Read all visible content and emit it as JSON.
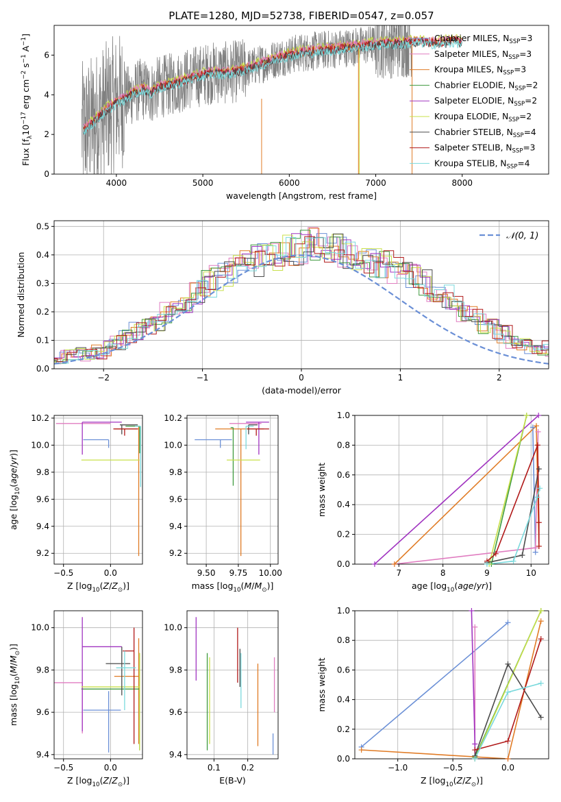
{
  "title": "PLATE=1280, MJD=52738, FIBERID=0547, z=0.057",
  "colors": {
    "chabrier_miles": "#6a8fd6",
    "salpeter_miles": "#e07cc0",
    "kroupa_miles": "#e07b25",
    "chabrier_elodie": "#3f9a3f",
    "salpeter_elodie": "#a033c0",
    "kroupa_elodie": "#c8e04a",
    "chabrier_stelib": "#4a4a4a",
    "salpeter_stelib": "#b01818",
    "kroupa_stelib": "#7ad9dc",
    "data": "#808080",
    "normal": "#6a8fd6"
  },
  "chart_data": [
    {
      "id": "spectrum",
      "type": "line",
      "xlabel": "wavelength [Angstrom, rest frame]",
      "ylabel": "Flux [f_λ10^-17 erg cm^-2 s^-1 A^-1]",
      "xlim": [
        3280,
        9000
      ],
      "ylim": [
        0,
        7.5
      ],
      "xticks": [
        "4000",
        "5000",
        "6000",
        "7000",
        "8000"
      ],
      "yticks": [
        "0",
        "2",
        "4",
        "6"
      ],
      "data_range": [
        3600,
        7420
      ],
      "legend_position": "right",
      "series": [
        {
          "name": "Chabrier MILES, N_SSP=3",
          "key": "chabrier_miles"
        },
        {
          "name": "Salpeter MILES, N_SSP=3",
          "key": "salpeter_miles"
        },
        {
          "name": "Kroupa MILES, N_SSP=3",
          "key": "kroupa_miles"
        },
        {
          "name": "Chabrier ELODIE, N_SSP=2",
          "key": "chabrier_elodie"
        },
        {
          "name": "Salpeter ELODIE, N_SSP=2",
          "key": "salpeter_elodie"
        },
        {
          "name": "Kroupa ELODIE, N_SSP=2",
          "key": "kroupa_elodie"
        },
        {
          "name": "Chabrier STELIB, N_SSP=4",
          "key": "chabrier_stelib"
        },
        {
          "name": "Salpeter STELIB, N_SSP=3",
          "key": "salpeter_stelib"
        },
        {
          "name": "Kroupa STELIB, N_SSP=4",
          "key": "kroupa_stelib"
        }
      ],
      "model_continuum": {
        "x": [
          3600,
          3700,
          3800,
          3900,
          4000,
          4100,
          4200,
          4300,
          4400,
          4500,
          4700,
          4900,
          5100,
          5300,
          5500,
          5700,
          5900,
          6100,
          6300,
          6500,
          6700,
          6900,
          7100,
          7300,
          7500,
          7700,
          7900,
          8100
        ],
        "y": [
          2.2,
          2.5,
          2.9,
          3.3,
          3.6,
          3.8,
          4.1,
          4.3,
          4.1,
          4.4,
          4.6,
          4.9,
          5.1,
          5.1,
          5.3,
          5.6,
          5.9,
          6.1,
          6.2,
          6.3,
          6.4,
          6.5,
          6.6,
          6.6,
          6.7,
          6.6,
          6.7,
          6.6
        ]
      }
    },
    {
      "id": "residuals",
      "type": "histogram",
      "xlabel": "(data-model)/error",
      "ylabel": "Normed distribution",
      "xlim": [
        -2.5,
        2.5
      ],
      "ylim": [
        0,
        0.52
      ],
      "xticks": [
        "−2",
        "−1",
        "0",
        "1",
        "2"
      ],
      "yticks": [
        "0.0",
        "0.1",
        "0.2",
        "0.3",
        "0.4",
        "0.5"
      ],
      "legend": "𝒩(0, 1)",
      "bin_width": 0.1,
      "base_distribution": [
        0.02,
        0.02,
        0.025,
        0.03,
        0.035,
        0.04,
        0.045,
        0.05,
        0.05,
        0.06,
        0.07,
        0.09,
        0.11,
        0.13,
        0.15,
        0.17,
        0.2,
        0.22,
        0.24,
        0.27,
        0.3,
        0.32,
        0.34,
        0.35,
        0.37,
        0.38,
        0.39,
        0.4,
        0.41,
        0.42,
        0.43,
        0.44,
        0.43,
        0.42,
        0.41,
        0.4,
        0.39,
        0.37,
        0.36,
        0.35,
        0.34,
        0.32,
        0.3,
        0.28,
        0.25,
        0.22,
        0.2,
        0.18,
        0.16,
        0.14,
        0.12,
        0.1,
        0.09,
        0.08,
        0.07,
        0.06,
        0.05,
        0.04,
        0.03,
        0.03,
        0.02
      ]
    },
    {
      "id": "age_vs_Z",
      "type": "errorbar",
      "xlabel": "Z [log10(Z/Z⊙)]",
      "ylabel": "age  [log10(age/yr)]",
      "xlim": [
        -0.6,
        0.34
      ],
      "ylim": [
        9.12,
        10.22
      ],
      "xticks": [
        "−0.5",
        "0.0"
      ],
      "yticks": [
        "9.2",
        "9.4",
        "9.6",
        "9.8",
        "10.0",
        "10.2"
      ],
      "points": [
        {
          "key": "chabrier_miles",
          "x": -0.02,
          "y": 10.04,
          "xerr": [
            0.27,
            0.0
          ],
          "yerr": [
            0.06,
            0.0
          ]
        },
        {
          "key": "salpeter_miles",
          "x": 0.0,
          "y": 10.16,
          "xerr": [
            0.58,
            0.0
          ],
          "yerr": [
            0.0,
            0.0
          ]
        },
        {
          "key": "kroupa_miles",
          "x": 0.3,
          "y": 10.12,
          "xerr": [
            0.26,
            0.0
          ],
          "yerr": [
            0.94,
            0.02
          ]
        },
        {
          "key": "chabrier_elodie",
          "x": 0.31,
          "y": 10.14,
          "xerr": [
            0.15,
            0.0
          ],
          "yerr": [
            0.2,
            0.0
          ]
        },
        {
          "key": "salpeter_elodie",
          "x": -0.3,
          "y": 10.17,
          "xerr": [
            0.0,
            0.42
          ],
          "yerr": [
            0.24,
            0.0
          ]
        },
        {
          "key": "kroupa_elodie",
          "x": 0.31,
          "y": 9.89,
          "xerr": [
            0.62,
            0.0
          ],
          "yerr": [
            0.0,
            0.0
          ]
        },
        {
          "key": "chabrier_stelib",
          "x": 0.12,
          "y": 10.15,
          "xerr": [
            0.02,
            0.17
          ],
          "yerr": [
            0.07,
            0.0
          ]
        },
        {
          "key": "salpeter_stelib",
          "x": 0.15,
          "y": 10.12,
          "xerr": [
            0.12,
            0.14
          ],
          "yerr": [
            0.05,
            0.0
          ]
        },
        {
          "key": "kroupa_stelib",
          "x": 0.32,
          "y": 10.14,
          "xerr": [
            0.06,
            0.0
          ],
          "yerr": [
            0.45,
            0.0
          ]
        }
      ]
    },
    {
      "id": "age_vs_mass",
      "type": "errorbar",
      "xlabel": "mass [log10(M/M⊙)]",
      "ylabel": "",
      "xlim": [
        9.35,
        10.06
      ],
      "ylim": [
        9.12,
        10.22
      ],
      "xticks": [
        "9.50",
        "9.75",
        "10.00"
      ],
      "yticks": [
        "9.2",
        "9.4",
        "9.6",
        "9.8",
        "10.0",
        "10.2"
      ],
      "points": [
        {
          "key": "chabrier_miles",
          "x": 9.61,
          "y": 10.04,
          "xerr": [
            0.2,
            0.09
          ],
          "yerr": [
            0.06,
            0.0
          ]
        },
        {
          "key": "salpeter_miles",
          "x": 9.75,
          "y": 10.16,
          "xerr": [
            0.07,
            0.18
          ],
          "yerr": [
            0.0,
            0.0
          ]
        },
        {
          "key": "kroupa_miles",
          "x": 9.77,
          "y": 10.12,
          "xerr": [
            0.2,
            0.18
          ],
          "yerr": [
            0.94,
            0.0
          ]
        },
        {
          "key": "chabrier_elodie",
          "x": 9.71,
          "y": 10.13,
          "xerr": [
            0.02,
            0.0
          ],
          "yerr": [
            0.43,
            0.0
          ]
        },
        {
          "key": "salpeter_elodie",
          "x": 9.91,
          "y": 10.17,
          "xerr": [
            0.1,
            0.08
          ],
          "yerr": [
            0.24,
            0.0
          ]
        },
        {
          "key": "kroupa_elodie",
          "x": 9.83,
          "y": 9.89,
          "xerr": [
            0.17,
            0.09
          ],
          "yerr": [
            0.0,
            0.0
          ]
        },
        {
          "key": "chabrier_stelib",
          "x": 9.83,
          "y": 10.15,
          "xerr": [
            0.0,
            0.07
          ],
          "yerr": [
            0.07,
            0.0
          ]
        },
        {
          "key": "salpeter_stelib",
          "x": 9.89,
          "y": 10.12,
          "xerr": [
            0.07,
            0.1
          ],
          "yerr": [
            0.05,
            0.0
          ]
        },
        {
          "key": "kroupa_stelib",
          "x": 9.81,
          "y": 10.14,
          "xerr": [
            0.0,
            0.06
          ],
          "yerr": [
            0.17,
            0.0
          ]
        }
      ]
    },
    {
      "id": "mass_weight_vs_age",
      "type": "line",
      "xlabel": "age  [log10(age/yr)]",
      "ylabel": "mass weight",
      "xlim": [
        6.0,
        10.4
      ],
      "ylim": [
        0,
        1
      ],
      "xticks": [
        "7",
        "8",
        "9",
        "10"
      ],
      "yticks": [
        "0.0",
        "0.2",
        "0.4",
        "0.6",
        "0.8",
        "1.0"
      ],
      "series": [
        {
          "key": "chabrier_miles",
          "x": [
            10.04,
            10.1
          ],
          "y": [
            0.92,
            0.08
          ]
        },
        {
          "key": "salpeter_miles",
          "x": [
            6.9,
            10.1,
            10.16
          ],
          "y": [
            0.0,
            0.11,
            0.89
          ]
        },
        {
          "key": "kroupa_miles",
          "x": [
            6.9,
            10.12,
            10.18
          ],
          "y": [
            0.0,
            0.93,
            0.12
          ]
        },
        {
          "key": "chabrier_elodie",
          "x": [
            9.1,
            9.9
          ],
          "y": [
            0.0,
            1.0
          ]
        },
        {
          "key": "salpeter_elodie",
          "x": [
            6.45,
            10.17
          ],
          "y": [
            0.0,
            1.0
          ]
        },
        {
          "key": "kroupa_elodie",
          "x": [
            9.05,
            9.9
          ],
          "y": [
            0.0,
            1.0
          ]
        },
        {
          "key": "chabrier_stelib",
          "x": [
            9.0,
            9.8,
            10.18
          ],
          "y": [
            0.01,
            0.06,
            0.64
          ]
        },
        {
          "key": "salpeter_stelib",
          "x": [
            9.0,
            9.2,
            10.15,
            10.18,
            10.18
          ],
          "y": [
            0.02,
            0.07,
            0.8,
            0.28,
            0.12
          ]
        },
        {
          "key": "kroupa_stelib",
          "x": [
            9.0,
            9.6,
            10.14,
            10.2
          ],
          "y": [
            0.0,
            0.02,
            0.45,
            0.51
          ]
        }
      ]
    },
    {
      "id": "mass_vs_Z",
      "type": "errorbar",
      "xlabel": "Z [log10(Z/Z⊙)]",
      "ylabel": "mass [log10(M/M⊙)]",
      "xlim": [
        -0.6,
        0.34
      ],
      "ylim": [
        9.38,
        10.08
      ],
      "xticks": [
        "−0.5",
        "0.0"
      ],
      "yticks": [
        "9.4",
        "9.6",
        "9.8",
        "10.0"
      ],
      "points": [
        {
          "key": "chabrier_miles",
          "x": -0.02,
          "y": 9.61,
          "xerr": [
            0.27,
            0.13
          ],
          "yerr": [
            0.2,
            0.09
          ]
        },
        {
          "key": "salpeter_miles",
          "x": -0.3,
          "y": 9.74,
          "xerr": [
            0.3,
            0.0
          ],
          "yerr": [
            0.24,
            0.0
          ]
        },
        {
          "key": "kroupa_miles",
          "x": 0.3,
          "y": 9.77,
          "xerr": [
            0.26,
            0.0
          ],
          "yerr": [
            0.32,
            0.18
          ]
        },
        {
          "key": "chabrier_elodie",
          "x": 0.31,
          "y": 9.71,
          "xerr": [
            0.62,
            0.0
          ],
          "yerr": [
            0.29,
            0.17
          ]
        },
        {
          "key": "salpeter_elodie",
          "x": -0.3,
          "y": 9.91,
          "xerr": [
            0.0,
            0.42
          ],
          "yerr": [
            0.4,
            0.14
          ]
        },
        {
          "key": "kroupa_elodie",
          "x": 0.31,
          "y": 9.72,
          "xerr": [
            0.62,
            0.0
          ],
          "yerr": [
            0.3,
            0.16
          ]
        },
        {
          "key": "chabrier_stelib",
          "x": 0.12,
          "y": 9.83,
          "xerr": [
            0.17,
            0.09
          ],
          "yerr": [
            0.15,
            0.08
          ]
        },
        {
          "key": "salpeter_stelib",
          "x": 0.25,
          "y": 9.89,
          "xerr": [
            0.12,
            0.0
          ],
          "yerr": [
            0.44,
            0.11
          ]
        },
        {
          "key": "kroupa_stelib",
          "x": 0.15,
          "y": 9.81,
          "xerr": [
            0.09,
            0.12
          ],
          "yerr": [
            0.2,
            0.08
          ]
        }
      ]
    },
    {
      "id": "mass_vs_EBV",
      "type": "errorbar",
      "xlabel": "E(B-V)",
      "ylabel": "",
      "xlim": [
        0.02,
        0.29
      ],
      "ylim": [
        9.38,
        10.08
      ],
      "xticks": [
        "0.1",
        "0.2"
      ],
      "yticks": [
        "9.4",
        "9.6",
        "9.8",
        "10.0"
      ],
      "points": [
        {
          "key": "chabrier_miles",
          "x": 0.275,
          "y": 9.5,
          "xerr": [
            0.0,
            0.0
          ],
          "yerr": [
            0.1,
            0.0
          ]
        },
        {
          "key": "salpeter_miles",
          "x": 0.279,
          "y": 9.75,
          "xerr": [
            0.0,
            0.0
          ],
          "yerr": [
            0.15,
            0.11
          ]
        },
        {
          "key": "kroupa_miles",
          "x": 0.23,
          "y": 9.64,
          "xerr": [
            0.0,
            0.0
          ],
          "yerr": [
            0.2,
            0.19
          ]
        },
        {
          "key": "chabrier_elodie",
          "x": 0.08,
          "y": 9.65,
          "xerr": [
            0.0,
            0.0
          ],
          "yerr": [
            0.23,
            0.23
          ]
        },
        {
          "key": "salpeter_elodie",
          "x": 0.047,
          "y": 9.9,
          "xerr": [
            0.0,
            0.0
          ],
          "yerr": [
            0.15,
            0.15
          ]
        },
        {
          "key": "kroupa_elodie",
          "x": 0.087,
          "y": 9.7,
          "xerr": [
            0.0,
            0.0
          ],
          "yerr": [
            0.25,
            0.16
          ]
        },
        {
          "key": "chabrier_stelib",
          "x": 0.177,
          "y": 9.8,
          "xerr": [
            0.0,
            0.0
          ],
          "yerr": [
            0.08,
            0.1
          ]
        },
        {
          "key": "salpeter_stelib",
          "x": 0.17,
          "y": 9.87,
          "xerr": [
            0.0,
            0.0
          ],
          "yerr": [
            0.13,
            0.13
          ]
        },
        {
          "key": "kroupa_stelib",
          "x": 0.18,
          "y": 9.75,
          "xerr": [
            0.0,
            0.0
          ],
          "yerr": [
            0.13,
            0.13
          ]
        }
      ]
    },
    {
      "id": "mass_weight_vs_Z",
      "type": "line",
      "xlabel": "Z [log10(Z/Z⊙)]",
      "ylabel": "mass weight",
      "xlim": [
        -1.39,
        0.37
      ],
      "ylim": [
        0,
        1
      ],
      "xticks": [
        "−1.0",
        "−0.5",
        "0.0"
      ],
      "yticks": [
        "0.0",
        "0.2",
        "0.4",
        "0.6",
        "0.8",
        "1.0"
      ],
      "series": [
        {
          "key": "chabrier_miles",
          "x": [
            -1.33,
            0.0
          ],
          "y": [
            0.08,
            0.92
          ]
        },
        {
          "key": "salpeter_miles",
          "x": [
            -0.3,
            -0.3,
            0.0
          ],
          "y": [
            0.89,
            0.0,
            0.0
          ]
        },
        {
          "key": "kroupa_miles",
          "x": [
            -1.33,
            0.0,
            0.3
          ],
          "y": [
            0.06,
            0.0,
            0.93
          ]
        },
        {
          "key": "chabrier_elodie",
          "x": [
            -0.3,
            0.3
          ],
          "y": [
            0.01,
            1.0
          ]
        },
        {
          "key": "salpeter_elodie",
          "x": [
            -0.33,
            -0.3,
            -0.3
          ],
          "y": [
            1.0,
            0.1,
            0.0
          ]
        },
        {
          "key": "kroupa_elodie",
          "x": [
            -0.3,
            0.3
          ],
          "y": [
            0.0,
            1.0
          ]
        },
        {
          "key": "chabrier_stelib",
          "x": [
            -0.3,
            0.0,
            0.3
          ],
          "y": [
            0.02,
            0.64,
            0.28
          ]
        },
        {
          "key": "salpeter_stelib",
          "x": [
            -0.3,
            0.0,
            0.3
          ],
          "y": [
            0.06,
            0.12,
            0.81
          ]
        },
        {
          "key": "kroupa_stelib",
          "x": [
            -0.3,
            0.0,
            0.3
          ],
          "y": [
            0.0,
            0.45,
            0.51
          ]
        }
      ]
    }
  ]
}
